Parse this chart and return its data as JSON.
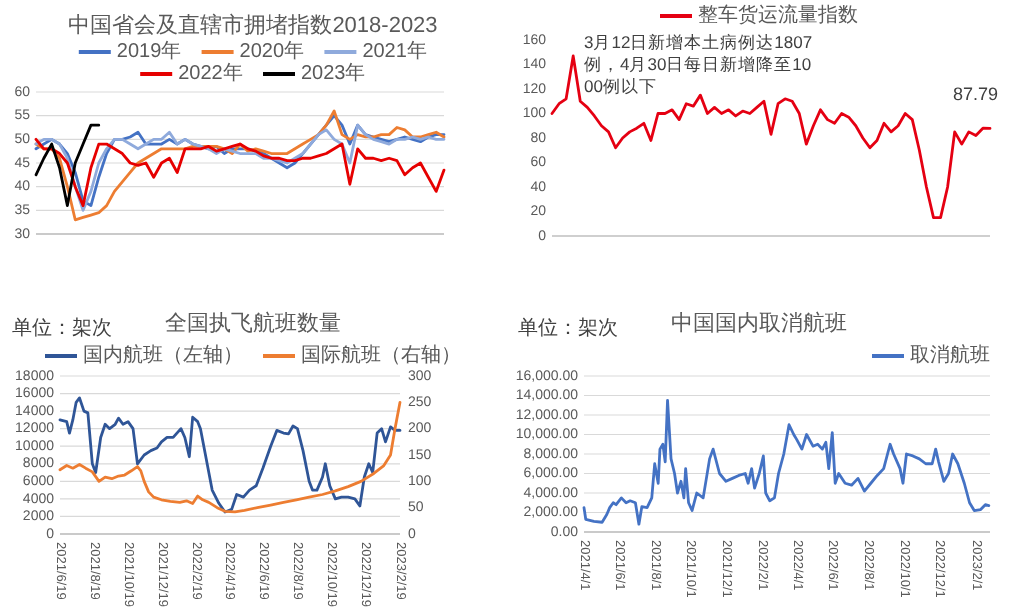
{
  "chart_data": [
    {
      "type": "line",
      "title": "中国省会及直辖市拥堵指数2018-2023",
      "categories": [
        null,
        null,
        null,
        null,
        null,
        null,
        null,
        null,
        null,
        null,
        null,
        null,
        null,
        null,
        null,
        null,
        null,
        null,
        null,
        null,
        null,
        null,
        null,
        null,
        null,
        null,
        null,
        null,
        null,
        null,
        null,
        null,
        null,
        null,
        null,
        null,
        null,
        null,
        null,
        null,
        null,
        null,
        null,
        null,
        null,
        null,
        null,
        null,
        null,
        null,
        null,
        null,
        null
      ],
      "ylim": [
        30,
        60
      ],
      "yticks": [
        30,
        35,
        40,
        45,
        50,
        55,
        60
      ],
      "grid": "y",
      "legend": "top",
      "series": [
        {
          "name": "2019年",
          "color": "#4472c4",
          "values": [
            48,
            49,
            50,
            49,
            47,
            43,
            37,
            36,
            42,
            47,
            50,
            50,
            50.5,
            51.5,
            49,
            49,
            49,
            50,
            49,
            50,
            49,
            48.5,
            48,
            48.5,
            47,
            48,
            48,
            48,
            47.5,
            47,
            46,
            45,
            44,
            45,
            47,
            49,
            51,
            53,
            55,
            53,
            49,
            53,
            51,
            50.5,
            50,
            49.5,
            50,
            50.5,
            50,
            49.5,
            50.5,
            51,
            51
          ]
        },
        {
          "name": "2020年",
          "color": "#ed7d31",
          "values": [
            49,
            48,
            48,
            46,
            40,
            33,
            33.5,
            34,
            34.5,
            36,
            39,
            41,
            43,
            45,
            46,
            47,
            48,
            48,
            48,
            48,
            48.5,
            48.5,
            48.5,
            48.5,
            48,
            47,
            49,
            47.5,
            48,
            47.5,
            47,
            47,
            47,
            48,
            49,
            50,
            51,
            53,
            56,
            51,
            50,
            51,
            50.5,
            50.5,
            51,
            51,
            52.5,
            52,
            50.5,
            50.5,
            51,
            51.5,
            50.5
          ]
        },
        {
          "name": "2021年",
          "color": "#8faadc",
          "values": [
            49,
            50,
            50,
            49,
            46,
            40,
            35,
            39,
            45,
            48,
            50,
            50,
            49,
            48,
            49,
            50,
            50,
            51.5,
            49,
            50,
            49,
            48.5,
            48,
            47,
            48,
            47.5,
            47,
            47,
            47,
            46,
            46,
            45.5,
            45,
            46,
            47,
            49,
            51,
            52,
            50,
            49,
            45,
            53,
            51,
            50,
            49.5,
            49,
            50,
            50,
            50.5,
            50,
            50.5,
            50,
            50
          ]
        },
        {
          "name": "2022年",
          "color": "#e60000",
          "values": [
            50,
            48,
            48,
            47,
            45,
            40,
            36,
            44,
            49,
            49,
            48,
            47,
            45,
            44.5,
            45,
            42,
            45,
            46,
            43,
            48,
            48,
            48,
            48.5,
            47.5,
            48,
            48.5,
            49,
            48,
            47.5,
            46.5,
            46,
            46,
            45.5,
            45.5,
            46,
            46,
            46.5,
            47,
            48,
            49,
            40.5,
            48,
            46,
            46,
            45.5,
            46,
            45.5,
            42.5,
            44,
            45,
            42,
            39,
            43.5
          ]
        },
        {
          "name": "2023年",
          "color": "#000000",
          "values": [
            42.5,
            46,
            49,
            44,
            36,
            45,
            49,
            53,
            53,
            null,
            null,
            null,
            null,
            null,
            null,
            null,
            null,
            null,
            null,
            null,
            null,
            null,
            null,
            null,
            null,
            null,
            null,
            null,
            null,
            null,
            null,
            null,
            null,
            null,
            null,
            null,
            null,
            null,
            null,
            null,
            null,
            null,
            null,
            null,
            null,
            null,
            null,
            null,
            null,
            null,
            null,
            null,
            null
          ]
        }
      ]
    },
    {
      "type": "line",
      "categories": [
        null,
        null,
        null,
        null,
        null,
        null,
        null,
        null,
        null,
        null,
        null,
        null,
        null,
        null,
        null,
        null,
        null,
        null,
        null,
        null,
        null,
        null,
        null,
        null,
        null,
        null,
        null,
        null,
        null,
        null,
        null,
        null,
        null,
        null,
        null,
        null,
        null,
        null,
        null,
        null,
        null,
        null,
        null,
        null,
        null,
        null,
        null,
        null,
        null,
        null,
        null,
        null,
        null,
        null,
        null,
        null,
        null,
        null,
        null,
        null,
        null,
        null,
        null
      ],
      "ylim": [
        0,
        160
      ],
      "yticks": [
        0,
        20,
        40,
        60,
        80,
        100,
        120,
        140,
        160
      ],
      "tick_labels": "y",
      "legend": "top",
      "annotations": [
        "3月12日新增本土病例达1807例，4月30日每日新增降至1000例以下",
        {
          "text": "87.79",
          "y": 87.79
        }
      ],
      "series": [
        {
          "name": "整车货运流量指数",
          "color": "#e50012",
          "values": [
            100,
            108,
            112,
            147,
            110,
            105,
            98,
            90,
            85,
            72,
            80,
            85,
            88,
            92,
            78,
            100,
            100,
            103,
            95,
            108,
            106,
            115,
            100,
            105,
            100,
            103,
            98,
            102,
            100,
            105,
            110,
            83,
            108,
            112,
            110,
            100,
            75,
            90,
            103,
            95,
            92,
            100,
            97,
            90,
            80,
            72,
            78,
            92,
            85,
            90,
            100,
            95,
            70,
            40,
            15,
            15,
            40,
            85,
            75,
            85,
            82,
            88,
            87.79
          ]
        }
      ]
    },
    {
      "type": "line",
      "title": "全国执飞航班数量",
      "annotations": [
        "单位：架次"
      ],
      "xlim": [
        "2021-06-19",
        "2023-02-19"
      ],
      "xticks": [
        {
          "value": "2021-06-19",
          "label": "2021/6/19"
        },
        {
          "value": "2021-08-19",
          "label": "2021/8/19"
        },
        {
          "value": "2021-10-19",
          "label": "2021/10/19"
        },
        {
          "value": "2021-12-19",
          "label": "2021/12/19"
        },
        {
          "value": "2022-02-19",
          "label": "2022/2/19"
        },
        {
          "value": "2022-04-19",
          "label": "2022/4/19"
        },
        {
          "value": "2022-06-19",
          "label": "2022/6/19"
        },
        {
          "value": "2022-08-19",
          "label": "2022/8/19"
        },
        {
          "value": "2022-10-19",
          "label": "2022/10/19"
        },
        {
          "value": "2022-12-19",
          "label": "2022/12/19"
        },
        {
          "value": "2023-02-19",
          "label": "2023/2/19"
        }
      ],
      "ylim": [
        0,
        18000
      ],
      "yticks": [
        0,
        2000,
        4000,
        6000,
        8000,
        10000,
        12000,
        14000,
        16000,
        18000
      ],
      "y2lim": [
        0,
        300
      ],
      "y2ticks": [
        0,
        50,
        100,
        150,
        200,
        250,
        300
      ],
      "grid": "y",
      "legend": "top",
      "series": [
        {
          "name": "国内航班（左轴）",
          "color": "#2f5597",
          "x": [
            "2021-06-19",
            "2021-07-01",
            "2021-07-06",
            "2021-07-12",
            "2021-07-18",
            "2021-07-24",
            "2021-08-01",
            "2021-08-08",
            "2021-08-16",
            "2021-08-22",
            "2021-08-31",
            "2021-09-08",
            "2021-09-16",
            "2021-09-26",
            "2021-10-02",
            "2021-10-10",
            "2021-10-19",
            "2021-10-28",
            "2021-11-05",
            "2021-11-17",
            "2021-11-29",
            "2021-12-10",
            "2021-12-18",
            "2021-12-28",
            "2022-01-08",
            "2022-01-22",
            "2022-01-29",
            "2022-02-06",
            "2022-02-12",
            "2022-02-21",
            "2022-02-26",
            "2022-03-07",
            "2022-03-19",
            "2022-03-31",
            "2022-04-11",
            "2022-04-23",
            "2022-05-02",
            "2022-05-14",
            "2022-05-25",
            "2022-06-06",
            "2022-06-18",
            "2022-07-02",
            "2022-07-13",
            "2022-07-25",
            "2022-08-03",
            "2022-08-11",
            "2022-08-19",
            "2022-08-29",
            "2022-09-09",
            "2022-09-15",
            "2022-09-23",
            "2022-10-03",
            "2022-10-08",
            "2022-10-16",
            "2022-10-26",
            "2022-11-06",
            "2022-11-18",
            "2022-11-30",
            "2022-12-09",
            "2022-12-17",
            "2022-12-25",
            "2023-01-01",
            "2023-01-09",
            "2023-01-17",
            "2023-01-24",
            "2023-02-02",
            "2023-02-10",
            "2023-02-19"
          ],
          "values": [
            13000,
            12800,
            11500,
            13000,
            15000,
            15500,
            14000,
            13800,
            8000,
            7000,
            11000,
            12500,
            12000,
            12500,
            13200,
            12500,
            12800,
            12000,
            8000,
            9000,
            9500,
            9800,
            10500,
            11000,
            11000,
            12000,
            11000,
            8800,
            13300,
            12800,
            12000,
            9000,
            5000,
            3500,
            2500,
            2800,
            4500,
            4200,
            5000,
            5500,
            7500,
            10000,
            11800,
            11500,
            11400,
            12300,
            12000,
            9500,
            6000,
            5000,
            5000,
            6500,
            8000,
            5500,
            4000,
            4200,
            4200,
            4000,
            3200,
            6500,
            8000,
            7000,
            11500,
            12000,
            10500,
            12200,
            11800,
            11800
          ]
        },
        {
          "name": "国际航班（右轴）",
          "color": "#ed7d31",
          "axis": "y2",
          "x": [
            "2021-06-19",
            "2021-07-01",
            "2021-07-12",
            "2021-07-24",
            "2021-08-04",
            "2021-08-16",
            "2021-08-28",
            "2021-09-08",
            "2021-09-20",
            "2021-10-02",
            "2021-10-13",
            "2021-10-25",
            "2021-11-05",
            "2021-11-11",
            "2021-11-17",
            "2021-11-25",
            "2021-12-04",
            "2021-12-18",
            "2022-01-03",
            "2022-01-20",
            "2022-02-01",
            "2022-02-12",
            "2022-02-21",
            "2022-03-02",
            "2022-03-13",
            "2022-03-28",
            "2022-04-11",
            "2022-04-29",
            "2022-05-16",
            "2022-06-08",
            "2022-07-02",
            "2022-07-25",
            "2022-08-17",
            "2022-09-09",
            "2022-10-03",
            "2022-10-26",
            "2022-11-18",
            "2022-12-11",
            "2023-01-03",
            "2023-01-21",
            "2023-02-02",
            "2023-02-10",
            "2023-02-19"
          ],
          "values": [
            122,
            130,
            125,
            132,
            125,
            118,
            100,
            108,
            105,
            110,
            112,
            120,
            128,
            120,
            100,
            80,
            70,
            65,
            62,
            60,
            63,
            58,
            72,
            65,
            60,
            50,
            43,
            42,
            45,
            50,
            55,
            60,
            65,
            70,
            75,
            82,
            90,
            100,
            115,
            130,
            150,
            200,
            250
          ]
        }
      ]
    },
    {
      "type": "line",
      "title": "中国国内取消航班",
      "annotations": [
        "单位：架次"
      ],
      "xlim": [
        "2021-04-01",
        "2023-02-25"
      ],
      "xticks": [
        {
          "value": "2021-04-01",
          "label": "2021/4/1"
        },
        {
          "value": "2021-06-01",
          "label": "2021/6/1"
        },
        {
          "value": "2021-08-01",
          "label": "2021/8/1"
        },
        {
          "value": "2021-10-01",
          "label": "2021/10/1"
        },
        {
          "value": "2021-12-01",
          "label": "2021/12/1"
        },
        {
          "value": "2022-02-01",
          "label": "2022/2/1"
        },
        {
          "value": "2022-04-01",
          "label": "2022/4/1"
        },
        {
          "value": "2022-06-01",
          "label": "2022/6/1"
        },
        {
          "value": "2022-08-01",
          "label": "2022/8/1"
        },
        {
          "value": "2022-10-01",
          "label": "2022/10/1"
        },
        {
          "value": "2022-12-01",
          "label": "2022/12/1"
        },
        {
          "value": "2023-02-01",
          "label": "2023/2/1"
        }
      ],
      "ylim": [
        0,
        16000
      ],
      "yticks": [
        {
          "value": 0,
          "label": "0.00"
        },
        {
          "value": 2000,
          "label": "2,000.00"
        },
        {
          "value": 4000,
          "label": "4,000.00"
        },
        {
          "value": 6000,
          "label": "6,000.00"
        },
        {
          "value": 8000,
          "label": "8,000.00"
        },
        {
          "value": 10000,
          "label": "10,000.00"
        },
        {
          "value": 12000,
          "label": "12,000.00"
        },
        {
          "value": 14000,
          "label": "14,000.00"
        },
        {
          "value": 16000,
          "label": "16,000.00"
        }
      ],
      "grid": "y",
      "legend": "top right",
      "series": [
        {
          "name": "取消航班",
          "color": "#4472c4",
          "x": [
            "2021-04-01",
            "2021-04-04",
            "2021-04-18",
            "2021-05-02",
            "2021-05-10",
            "2021-05-15",
            "2021-05-21",
            "2021-05-26",
            "2021-06-04",
            "2021-06-12",
            "2021-06-19",
            "2021-06-28",
            "2021-07-04",
            "2021-07-09",
            "2021-07-18",
            "2021-07-26",
            "2021-07-31",
            "2021-08-06",
            "2021-08-09",
            "2021-08-14",
            "2021-08-18",
            "2021-08-22",
            "2021-08-28",
            "2021-09-03",
            "2021-09-08",
            "2021-09-14",
            "2021-09-19",
            "2021-09-22",
            "2021-09-27",
            "2021-10-03",
            "2021-10-11",
            "2021-10-22",
            "2021-11-02",
            "2021-11-08",
            "2021-11-19",
            "2021-11-30",
            "2021-12-11",
            "2021-12-22",
            "2022-01-02",
            "2022-01-07",
            "2022-01-13",
            "2022-01-18",
            "2022-01-26",
            "2022-02-02",
            "2022-02-06",
            "2022-02-13",
            "2022-02-21",
            "2022-02-28",
            "2022-03-09",
            "2022-03-18",
            "2022-03-26",
            "2022-03-31",
            "2022-04-09",
            "2022-04-17",
            "2022-04-28",
            "2022-05-06",
            "2022-05-14",
            "2022-05-20",
            "2022-05-25",
            "2022-05-31",
            "2022-06-05",
            "2022-06-11",
            "2022-06-22",
            "2022-07-03",
            "2022-07-14",
            "2022-07-25",
            "2022-08-05",
            "2022-08-16",
            "2022-08-27",
            "2022-09-07",
            "2022-09-13",
            "2022-09-24",
            "2022-09-29",
            "2022-10-05",
            "2022-10-16",
            "2022-10-27",
            "2022-11-07",
            "2022-11-18",
            "2022-11-24",
            "2022-11-29",
            "2022-12-08",
            "2022-12-16",
            "2022-12-23",
            "2023-01-01",
            "2023-01-12",
            "2023-01-21",
            "2023-01-29",
            "2023-02-09",
            "2023-02-17",
            "2023-02-23"
          ],
          "values": [
            2500,
            1300,
            1100,
            1000,
            1800,
            2500,
            3000,
            2800,
            3500,
            3000,
            3200,
            3000,
            800,
            2600,
            2500,
            3500,
            7000,
            5000,
            8500,
            9000,
            7200,
            13500,
            7500,
            6000,
            4000,
            5200,
            3500,
            6500,
            3000,
            2200,
            4000,
            3500,
            7500,
            8500,
            6000,
            5200,
            5500,
            5800,
            6000,
            5000,
            6500,
            4500,
            6000,
            7800,
            4000,
            3200,
            3500,
            6000,
            8000,
            11000,
            10000,
            9500,
            8500,
            10000,
            8800,
            9000,
            8500,
            9200,
            6500,
            10200,
            5000,
            6000,
            5000,
            4800,
            5500,
            4200,
            5000,
            5800,
            6500,
            9000,
            8000,
            6500,
            5000,
            8000,
            7800,
            7500,
            7000,
            7000,
            8500,
            7200,
            5200,
            6000,
            8000,
            7000,
            5000,
            3000,
            2200,
            2300,
            2800,
            2700
          ]
        }
      ]
    }
  ]
}
